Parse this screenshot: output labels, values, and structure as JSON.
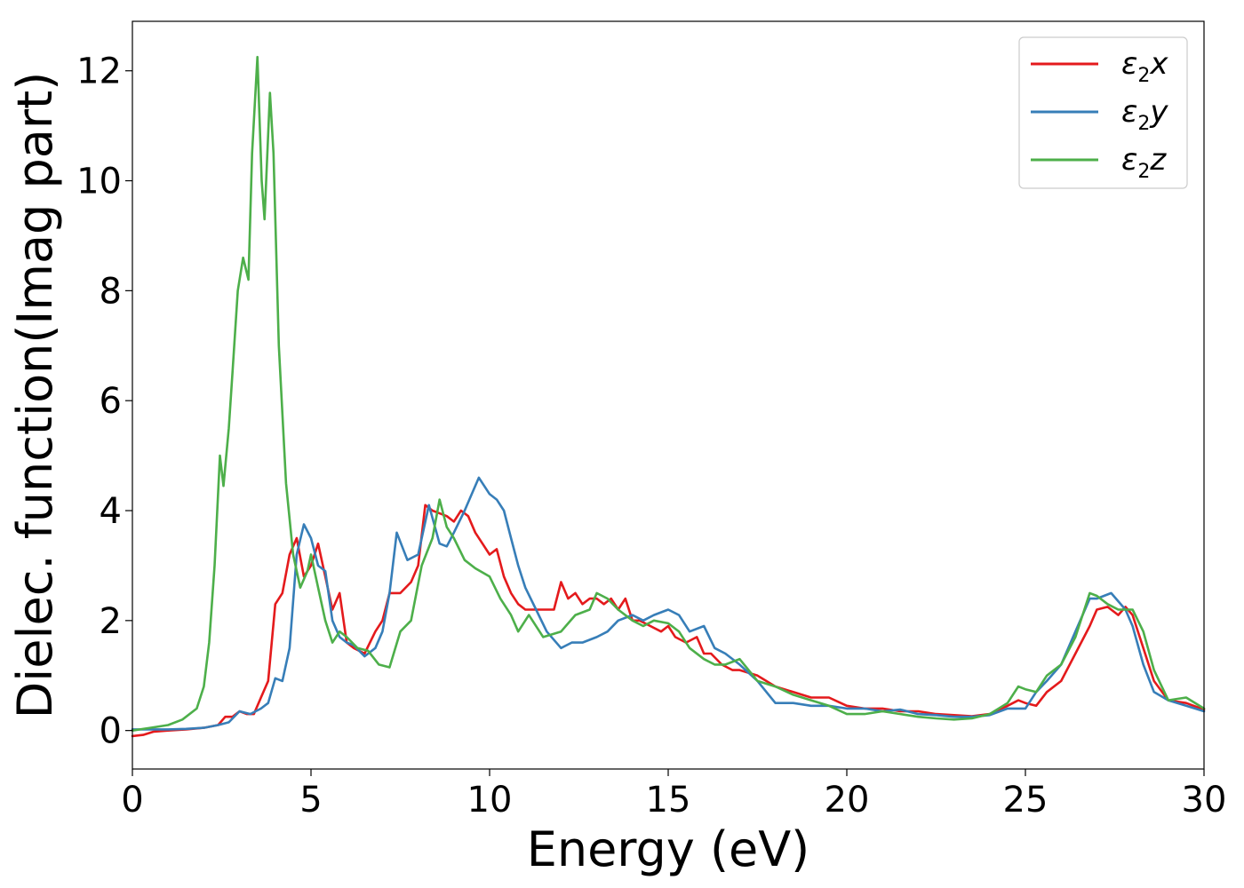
{
  "chart_data": {
    "type": "line",
    "xlabel": "Energy (eV)",
    "ylabel": "Dielec. function(Imag part)",
    "xlim": [
      0,
      30
    ],
    "ylim": [
      -0.7,
      12.9
    ],
    "xticks": [
      0,
      5,
      10,
      15,
      20,
      25,
      30
    ],
    "yticks": [
      0,
      2,
      4,
      6,
      8,
      10,
      12
    ],
    "grid": false,
    "legend_position": "top-right",
    "series": [
      {
        "name": "ε2x",
        "legend": {
          "base": "ε",
          "sub": "2",
          "axis": "x"
        },
        "color": "#e41a1c",
        "x": [
          0,
          0.3,
          0.6,
          1,
          1.5,
          2,
          2.4,
          2.6,
          2.8,
          3,
          3.2,
          3.4,
          3.6,
          3.8,
          4,
          4.2,
          4.4,
          4.6,
          4.8,
          5,
          5.2,
          5.4,
          5.6,
          5.8,
          6,
          6.2,
          6.5,
          6.8,
          7,
          7.2,
          7.5,
          7.8,
          8,
          8.2,
          8.4,
          8.6,
          8.8,
          9,
          9.2,
          9.4,
          9.6,
          9.8,
          10,
          10.2,
          10.4,
          10.6,
          10.8,
          11,
          11.2,
          11.5,
          11.8,
          12,
          12.2,
          12.4,
          12.6,
          12.8,
          13,
          13.2,
          13.4,
          13.6,
          13.8,
          14,
          14.2,
          14.5,
          14.8,
          15,
          15.2,
          15.5,
          15.8,
          16,
          16.2,
          16.5,
          16.8,
          17,
          17.5,
          18,
          18.5,
          19,
          19.5,
          20,
          20.5,
          21,
          21.5,
          22,
          22.5,
          23,
          23.5,
          24,
          24.5,
          24.8,
          25,
          25.3,
          25.6,
          26,
          26.4,
          26.8,
          27,
          27.3,
          27.6,
          27.8,
          28,
          28.3,
          28.6,
          29,
          29.5,
          30
        ],
        "values": [
          -0.1,
          -0.08,
          -0.02,
          0.0,
          0.02,
          0.05,
          0.1,
          0.25,
          0.25,
          0.35,
          0.3,
          0.3,
          0.6,
          0.9,
          2.3,
          2.5,
          3.2,
          3.5,
          2.8,
          3.0,
          3.4,
          2.8,
          2.2,
          2.5,
          1.6,
          1.5,
          1.4,
          1.8,
          2.0,
          2.5,
          2.5,
          2.7,
          3.0,
          4.1,
          4.0,
          3.95,
          3.9,
          3.8,
          4.0,
          3.9,
          3.6,
          3.4,
          3.2,
          3.3,
          2.8,
          2.5,
          2.3,
          2.2,
          2.2,
          2.2,
          2.2,
          2.7,
          2.4,
          2.5,
          2.3,
          2.4,
          2.4,
          2.3,
          2.4,
          2.2,
          2.4,
          2.0,
          2.0,
          1.9,
          1.8,
          1.9,
          1.7,
          1.6,
          1.7,
          1.4,
          1.4,
          1.2,
          1.1,
          1.1,
          1.0,
          0.8,
          0.7,
          0.6,
          0.6,
          0.45,
          0.4,
          0.4,
          0.35,
          0.35,
          0.3,
          0.28,
          0.26,
          0.3,
          0.45,
          0.55,
          0.5,
          0.45,
          0.7,
          0.9,
          1.4,
          1.9,
          2.2,
          2.25,
          2.1,
          2.25,
          2.1,
          1.5,
          0.9,
          0.55,
          0.5,
          0.38
        ]
      },
      {
        "name": "ε2y",
        "legend": {
          "base": "ε",
          "sub": "2",
          "axis": "y"
        },
        "color": "#377eb8",
        "x": [
          0,
          0.5,
          1,
          1.5,
          2,
          2.4,
          2.7,
          3,
          3.3,
          3.6,
          3.8,
          4,
          4.2,
          4.4,
          4.6,
          4.8,
          5,
          5.2,
          5.4,
          5.6,
          5.8,
          6,
          6.2,
          6.5,
          6.8,
          7,
          7.2,
          7.4,
          7.7,
          8,
          8.3,
          8.6,
          8.8,
          9,
          9.3,
          9.5,
          9.7,
          10,
          10.2,
          10.4,
          10.6,
          10.8,
          11,
          11.3,
          11.6,
          12,
          12.3,
          12.6,
          13,
          13.3,
          13.6,
          14,
          14.3,
          14.6,
          15,
          15.3,
          15.6,
          16,
          16.3,
          16.6,
          17,
          17.5,
          18,
          18.5,
          19,
          19.5,
          20,
          20.5,
          21,
          21.5,
          22,
          22.5,
          23,
          23.5,
          24,
          24.5,
          25,
          25.3,
          25.6,
          26,
          26.4,
          26.8,
          27,
          27.4,
          27.8,
          28,
          28.3,
          28.6,
          29,
          29.5,
          30
        ],
        "values": [
          0.02,
          0.02,
          0.02,
          0.03,
          0.05,
          0.1,
          0.15,
          0.35,
          0.3,
          0.4,
          0.5,
          0.95,
          0.9,
          1.5,
          3.2,
          3.75,
          3.5,
          3.0,
          2.9,
          2.0,
          1.7,
          1.6,
          1.55,
          1.35,
          1.5,
          1.8,
          2.5,
          3.6,
          3.1,
          3.2,
          4.1,
          3.4,
          3.35,
          3.6,
          4.0,
          4.3,
          4.6,
          4.3,
          4.2,
          4.0,
          3.5,
          3.0,
          2.6,
          2.2,
          1.8,
          1.5,
          1.6,
          1.6,
          1.7,
          1.8,
          2.0,
          2.1,
          2.0,
          2.1,
          2.2,
          2.1,
          1.8,
          1.9,
          1.5,
          1.4,
          1.2,
          0.9,
          0.5,
          0.5,
          0.45,
          0.45,
          0.4,
          0.4,
          0.35,
          0.38,
          0.3,
          0.28,
          0.25,
          0.25,
          0.28,
          0.4,
          0.4,
          0.7,
          0.9,
          1.2,
          1.8,
          2.4,
          2.4,
          2.5,
          2.2,
          1.9,
          1.2,
          0.7,
          0.55,
          0.45,
          0.35
        ]
      },
      {
        "name": "ε2z",
        "legend": {
          "base": "ε",
          "sub": "2",
          "axis": "z"
        },
        "color": "#4daf4a",
        "x": [
          0,
          0.5,
          1,
          1.4,
          1.8,
          2,
          2.15,
          2.3,
          2.45,
          2.55,
          2.7,
          2.8,
          2.95,
          3.1,
          3.25,
          3.35,
          3.5,
          3.62,
          3.7,
          3.85,
          3.95,
          4.1,
          4.3,
          4.5,
          4.7,
          4.9,
          5.0,
          5.2,
          5.4,
          5.6,
          5.8,
          6.0,
          6.3,
          6.6,
          6.9,
          7.2,
          7.5,
          7.8,
          8.1,
          8.4,
          8.6,
          8.8,
          9,
          9.3,
          9.6,
          10,
          10.3,
          10.6,
          10.8,
          11.1,
          11.5,
          12,
          12.4,
          12.8,
          13,
          13.3,
          13.6,
          14,
          14.3,
          14.6,
          15,
          15.3,
          15.6,
          16,
          16.3,
          16.6,
          17,
          17.5,
          18,
          18.5,
          19,
          19.5,
          20,
          20.5,
          21,
          21.5,
          22,
          22.5,
          23,
          23.5,
          24,
          24.5,
          24.8,
          25,
          25.3,
          25.6,
          26,
          26.4,
          26.8,
          27,
          27.3,
          27.6,
          28,
          28.3,
          28.6,
          29,
          29.5,
          30
        ],
        "values": [
          0.0,
          0.05,
          0.1,
          0.2,
          0.4,
          0.8,
          1.6,
          3.0,
          5.0,
          4.45,
          5.5,
          6.5,
          8.0,
          8.6,
          8.2,
          10.5,
          12.25,
          10.0,
          9.3,
          11.6,
          10.5,
          7.0,
          4.5,
          3.2,
          2.6,
          2.9,
          3.2,
          2.6,
          2.0,
          1.6,
          1.8,
          1.7,
          1.5,
          1.45,
          1.2,
          1.15,
          1.8,
          2.0,
          3.0,
          3.5,
          4.2,
          3.7,
          3.5,
          3.1,
          2.95,
          2.8,
          2.4,
          2.1,
          1.8,
          2.1,
          1.7,
          1.8,
          2.1,
          2.2,
          2.5,
          2.4,
          2.2,
          2.0,
          1.9,
          2.0,
          1.95,
          1.8,
          1.5,
          1.3,
          1.2,
          1.2,
          1.3,
          0.9,
          0.8,
          0.65,
          0.55,
          0.45,
          0.3,
          0.3,
          0.35,
          0.3,
          0.25,
          0.22,
          0.2,
          0.22,
          0.3,
          0.5,
          0.8,
          0.75,
          0.7,
          1.0,
          1.2,
          1.7,
          2.5,
          2.45,
          2.3,
          2.2,
          2.2,
          1.8,
          1.1,
          0.55,
          0.6,
          0.4
        ]
      }
    ]
  }
}
